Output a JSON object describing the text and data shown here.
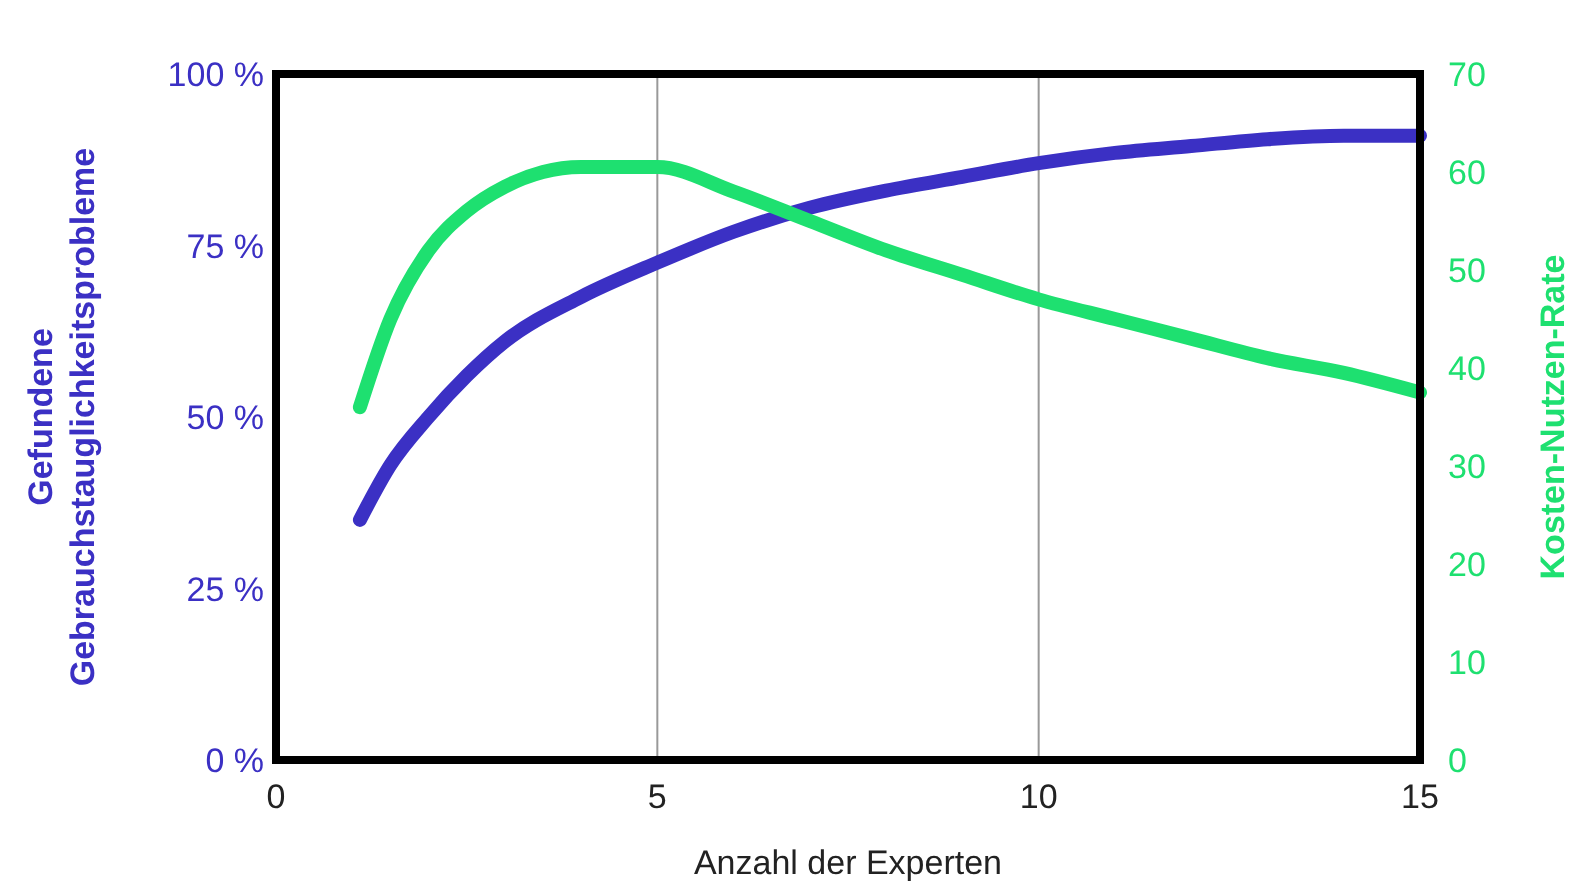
{
  "chart_data": {
    "type": "line",
    "xlabel": "Anzahl der Experten",
    "ylabel": "Gefundene\nGebrauchstauglichkeitsprobleme",
    "y2label": "Kosten-Nutzen-Rate",
    "xlim": [
      0,
      15
    ],
    "xticks": [
      0,
      5,
      10,
      15
    ],
    "ylim": [
      0,
      100
    ],
    "yticks": [
      {
        "value": 0,
        "label": "0 %"
      },
      {
        "value": 25,
        "label": "25 %"
      },
      {
        "value": 50,
        "label": "50 %"
      },
      {
        "value": 75,
        "label": "75 %"
      },
      {
        "value": 100,
        "label": "100 %"
      }
    ],
    "y2lim": [
      0,
      70
    ],
    "y2ticks": [
      0,
      10,
      20,
      30,
      40,
      50,
      60,
      70
    ],
    "grid": "x",
    "marker": "none",
    "line_style": "solid",
    "series": [
      {
        "color": "#3b30c4",
        "x": [
          1.1,
          1.5,
          2,
          2.5,
          3,
          4,
          5,
          6,
          7,
          8,
          9,
          10,
          11,
          12,
          13,
          14,
          15
        ],
        "values": [
          35,
          43,
          50,
          56,
          61,
          67.5,
          72.5,
          77,
          80.5,
          83,
          85,
          87,
          88.5,
          89.5,
          90.5,
          91,
          91
        ]
      },
      {
        "color": "#1ee070",
        "axis": "y2",
        "x": [
          1.1,
          1.5,
          2,
          2.5,
          3,
          3.5,
          4,
          5,
          6,
          7,
          8,
          9,
          10,
          11,
          12,
          13,
          14,
          15
        ],
        "values": [
          36,
          45,
          52,
          56,
          58.5,
          60,
          60.5,
          60.5,
          58,
          55,
          52,
          49.5,
          47,
          45,
          43,
          41,
          39.5,
          37.5
        ]
      }
    ]
  }
}
